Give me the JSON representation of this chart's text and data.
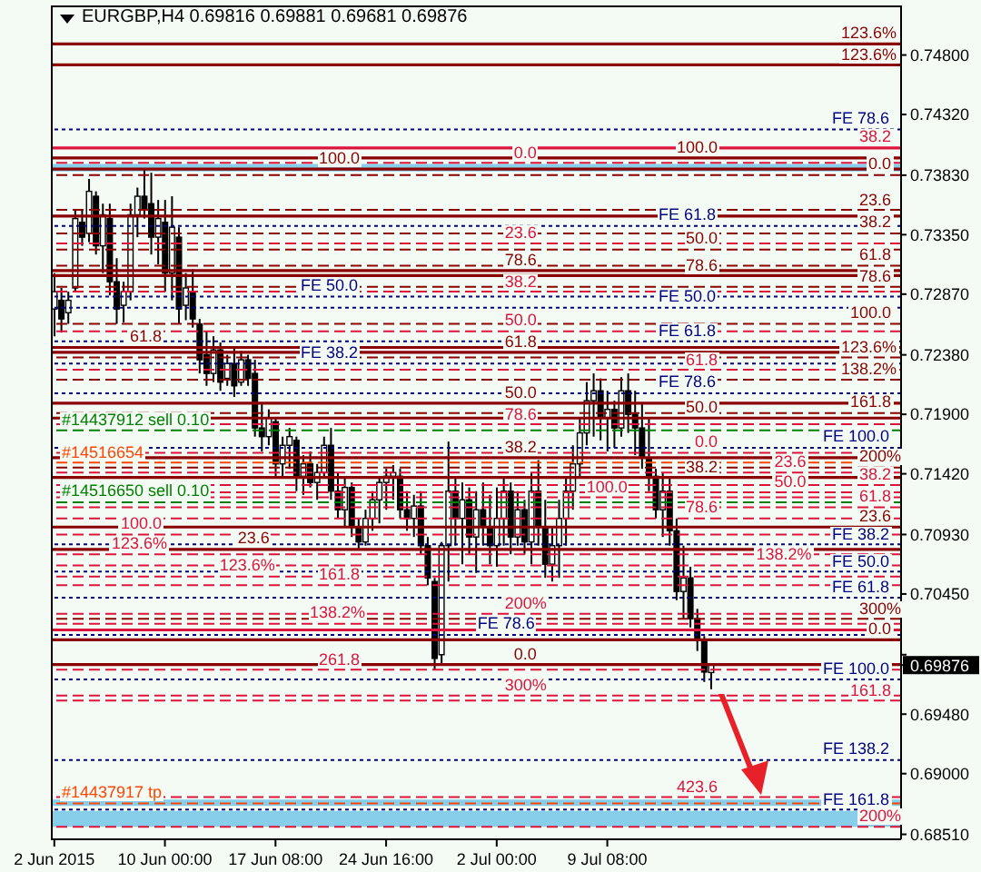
{
  "chart_data": {
    "type": "candlestick",
    "title": "EURGBP,H4 0.69816 0.69881 0.69681 0.69876",
    "color": "#000000",
    "categories": [
      "2 Jun 2015",
      null,
      null,
      null,
      null,
      null,
      null,
      null,
      null,
      null,
      null,
      null,
      null,
      null,
      null,
      null,
      "10 Jun 00:00",
      null,
      null,
      null,
      null,
      null,
      null,
      null,
      null,
      null,
      null,
      null,
      null,
      null,
      null,
      null,
      "17 Jun 08:00",
      null,
      null,
      null,
      null,
      null,
      null,
      null,
      null,
      null,
      null,
      null,
      null,
      null,
      null,
      null,
      "24 Jun 16:00",
      null,
      null,
      null,
      null,
      null,
      null,
      null,
      null,
      null,
      null,
      null,
      null,
      null,
      null,
      null,
      "2 Jul 00:00",
      null,
      null,
      null,
      null,
      null,
      null,
      null,
      null,
      null,
      null,
      null,
      null,
      null,
      null,
      null,
      "9 Jul 08:00",
      null,
      null,
      null,
      null,
      null,
      null,
      null,
      null,
      null,
      null,
      null,
      null,
      null,
      null,
      null,
      null,
      null,
      null,
      null,
      null,
      null,
      null,
      null,
      null,
      null,
      null,
      null,
      null,
      null,
      null,
      null,
      null,
      null,
      null,
      null,
      null,
      null,
      null,
      null,
      null,
      null,
      null
    ],
    "ohlc": [
      [
        0.7275,
        0.7304,
        0.7253,
        0.7289
      ],
      [
        0.7282,
        0.7292,
        0.7256,
        0.7267
      ],
      [
        0.7272,
        0.7289,
        0.7263,
        0.7282
      ],
      [
        0.7292,
        0.7355,
        0.7289,
        0.7348
      ],
      [
        0.7345,
        0.7355,
        0.7326,
        0.7333
      ],
      [
        0.7336,
        0.738,
        0.7329,
        0.737
      ],
      [
        0.7366,
        0.737,
        0.7319,
        0.7326
      ],
      [
        0.7326,
        0.736,
        0.7304,
        0.7351
      ],
      [
        0.7348,
        0.736,
        0.7286,
        0.7297
      ],
      [
        0.7297,
        0.7316,
        0.7263,
        0.7275
      ],
      [
        0.7278,
        0.7297,
        0.7264,
        0.7289
      ],
      [
        0.7289,
        0.736,
        0.7282,
        0.7351
      ],
      [
        0.7351,
        0.7373,
        0.7333,
        0.7366
      ],
      [
        0.7366,
        0.7388,
        0.7348,
        0.7355
      ],
      [
        0.736,
        0.7385,
        0.7319,
        0.7333
      ],
      [
        0.7333,
        0.7363,
        0.7311,
        0.7348
      ],
      [
        0.7345,
        0.7363,
        0.7289,
        0.7304
      ],
      [
        0.7304,
        0.7366,
        0.7282,
        0.7341
      ],
      [
        0.7333,
        0.7341,
        0.7263,
        0.7275
      ],
      [
        0.7278,
        0.7304,
        0.7266,
        0.7292
      ],
      [
        0.7289,
        0.7307,
        0.726,
        0.7267
      ],
      [
        0.7263,
        0.7267,
        0.7223,
        0.7234
      ],
      [
        0.7238,
        0.7257,
        0.7213,
        0.7223
      ],
      [
        0.7223,
        0.7253,
        0.7216,
        0.7242
      ],
      [
        0.7242,
        0.7248,
        0.7209,
        0.7216
      ],
      [
        0.7219,
        0.7238,
        0.7213,
        0.7231
      ],
      [
        0.7231,
        0.7245,
        0.7204,
        0.7213
      ],
      [
        0.7216,
        0.7241,
        0.7213,
        0.7234
      ],
      [
        0.7234,
        0.7238,
        0.7213,
        0.7219
      ],
      [
        0.7223,
        0.7234,
        0.7172,
        0.7179
      ],
      [
        0.7179,
        0.7199,
        0.716,
        0.7172
      ],
      [
        0.7172,
        0.7194,
        0.7165,
        0.7187
      ],
      [
        0.7184,
        0.7187,
        0.714,
        0.715
      ],
      [
        0.715,
        0.7172,
        0.714,
        0.7165
      ],
      [
        0.7165,
        0.7179,
        0.7146,
        0.7172
      ],
      [
        0.7169,
        0.7172,
        0.7128,
        0.714
      ],
      [
        0.714,
        0.7157,
        0.7125,
        0.715
      ],
      [
        0.715,
        0.716,
        0.7131,
        0.7135
      ],
      [
        0.7135,
        0.715,
        0.7121,
        0.7143
      ],
      [
        0.7143,
        0.7172,
        0.714,
        0.7165
      ],
      [
        0.7165,
        0.7179,
        0.7121,
        0.7128
      ],
      [
        0.7128,
        0.7143,
        0.7106,
        0.7113
      ],
      [
        0.7113,
        0.714,
        0.7099,
        0.7131
      ],
      [
        0.7131,
        0.7135,
        0.7091,
        0.7099
      ],
      [
        0.7099,
        0.7106,
        0.7081,
        0.7087
      ],
      [
        0.7087,
        0.7113,
        0.7084,
        0.7106
      ],
      [
        0.7106,
        0.7128,
        0.7096,
        0.7121
      ],
      [
        0.7121,
        0.714,
        0.7102,
        0.7135
      ],
      [
        0.7135,
        0.7146,
        0.7113,
        0.714
      ],
      [
        0.714,
        0.7149,
        0.7121,
        0.7143
      ],
      [
        0.714,
        0.7146,
        0.7106,
        0.7113
      ],
      [
        0.7113,
        0.7128,
        0.7096,
        0.7106
      ],
      [
        0.7106,
        0.7125,
        0.7091,
        0.7116
      ],
      [
        0.7116,
        0.7128,
        0.7077,
        0.7084
      ],
      [
        0.7084,
        0.7091,
        0.7052,
        0.7058
      ],
      [
        0.7055,
        0.7058,
        0.6984,
        0.6993
      ],
      [
        0.6996,
        0.7087,
        0.6989,
        0.7084
      ],
      [
        0.7084,
        0.7168,
        0.7055,
        0.7128
      ],
      [
        0.7128,
        0.714,
        0.7084,
        0.7106
      ],
      [
        0.7106,
        0.7135,
        0.7069,
        0.7121
      ],
      [
        0.7121,
        0.7131,
        0.7077,
        0.7091
      ],
      [
        0.7091,
        0.7128,
        0.7062,
        0.7113
      ],
      [
        0.7113,
        0.7135,
        0.7084,
        0.7099
      ],
      [
        0.7099,
        0.7125,
        0.7069,
        0.7084
      ],
      [
        0.7084,
        0.7131,
        0.7067,
        0.7106
      ],
      [
        0.7106,
        0.714,
        0.7084,
        0.7128
      ],
      [
        0.7128,
        0.7135,
        0.7077,
        0.7091
      ],
      [
        0.7091,
        0.7128,
        0.7084,
        0.7113
      ],
      [
        0.7113,
        0.7121,
        0.7077,
        0.7087
      ],
      [
        0.7087,
        0.7143,
        0.7069,
        0.7128
      ],
      [
        0.7128,
        0.7153,
        0.7084,
        0.7099
      ],
      [
        0.7099,
        0.7121,
        0.7058,
        0.7069
      ],
      [
        0.7069,
        0.7099,
        0.7055,
        0.7084
      ],
      [
        0.7084,
        0.7121,
        0.7058,
        0.7106
      ],
      [
        0.7106,
        0.714,
        0.7084,
        0.7128
      ],
      [
        0.7128,
        0.7165,
        0.7113,
        0.715
      ],
      [
        0.715,
        0.7187,
        0.714,
        0.7175
      ],
      [
        0.7175,
        0.7216,
        0.7165,
        0.7201
      ],
      [
        0.7201,
        0.7223,
        0.7172,
        0.7209
      ],
      [
        0.7209,
        0.7219,
        0.7169,
        0.7187
      ],
      [
        0.7187,
        0.7209,
        0.716,
        0.7194
      ],
      [
        0.7194,
        0.7201,
        0.7163,
        0.7179
      ],
      [
        0.7179,
        0.722,
        0.7172,
        0.7209
      ],
      [
        0.7209,
        0.7223,
        0.7175,
        0.719
      ],
      [
        0.719,
        0.7209,
        0.7157,
        0.7179
      ],
      [
        0.7179,
        0.7199,
        0.7146,
        0.7155
      ],
      [
        0.7155,
        0.7187,
        0.7128,
        0.714
      ],
      [
        0.714,
        0.7146,
        0.7106,
        0.7113
      ],
      [
        0.7113,
        0.7143,
        0.7091,
        0.7128
      ],
      [
        0.7128,
        0.714,
        0.7084,
        0.7096
      ],
      [
        0.7096,
        0.7106,
        0.704,
        0.7047
      ],
      [
        0.7047,
        0.7084,
        0.7025,
        0.7058
      ],
      [
        0.7058,
        0.7067,
        0.7018,
        0.7025
      ],
      [
        0.7025,
        0.7033,
        0.6999,
        0.7008
      ],
      [
        0.7008,
        0.7011,
        0.6974,
        0.6982
      ],
      [
        0.69816,
        0.69881,
        0.69681,
        0.69876
      ],
      null,
      null,
      null,
      null,
      null,
      null,
      null,
      null,
      null,
      null,
      null,
      null,
      null,
      null,
      null,
      null,
      null,
      null,
      null,
      null,
      null,
      null,
      null,
      null,
      null,
      null,
      null
    ],
    "ylim": [
      0.6847,
      0.752
    ],
    "yticks": [
      {
        "value": 0.748,
        "label": "0.74800"
      },
      {
        "value": 0.7432,
        "label": "0.74320"
      },
      {
        "value": 0.7383,
        "label": "0.73830"
      },
      {
        "value": 0.7335,
        "label": "0.73350"
      },
      {
        "value": 0.7287,
        "label": "0.72870"
      },
      {
        "value": 0.7238,
        "label": "0.72380"
      },
      {
        "value": 0.719,
        "label": "0.71900"
      },
      {
        "value": 0.7142,
        "label": "0.71420"
      },
      {
        "value": 0.7093,
        "label": "0.70930"
      },
      {
        "value": 0.7045,
        "label": "0.70450"
      },
      {
        "value": 0.6996,
        "label": null
      },
      {
        "value": 0.69876,
        "label": "0.69876"
      },
      {
        "value": 0.6948,
        "label": "0.69480"
      },
      {
        "value": 0.69,
        "label": "0.69000"
      },
      {
        "value": 0.6851,
        "label": "0.68510"
      }
    ],
    "bands": [
      {
        "axis": "y",
        "from": 0.7386,
        "to": 0.7392,
        "color": "#87ceeb"
      },
      {
        "axis": "y",
        "from": 0.6874,
        "to": 0.6879,
        "color": "#87ceeb"
      },
      {
        "axis": "y",
        "from": 0.6857,
        "to": 0.687,
        "color": "#87ceeb"
      }
    ],
    "ref_lines": [
      {
        "axis": "y",
        "value": 0.7405,
        "color": "#dc143c",
        "line_style": "solid"
      },
      {
        "axis": "y",
        "value": 0.7383,
        "color": "#8b0000",
        "line_style": "dashed"
      },
      {
        "axis": "y",
        "value": 0.7355,
        "color": "#8b0000",
        "line_style": "dashed"
      },
      {
        "axis": "y",
        "value": 0.7336,
        "color": "#8b0000",
        "line_style": "dashed"
      },
      {
        "axis": "y",
        "value": 0.7323,
        "color": "#8b0000",
        "line_style": "dashed"
      },
      {
        "axis": "y",
        "value": 0.731,
        "color": "#8b0000",
        "line_style": "dashed"
      },
      {
        "axis": "y",
        "value": 0.7293,
        "color": "#8b0000",
        "line_style": "dashed"
      },
      {
        "axis": "y",
        "value": 0.7263,
        "color": "#8b0000",
        "line_style": "dashed"
      },
      {
        "axis": "y",
        "value": 0.7236,
        "color": "#8b0000",
        "line_style": "dashed"
      },
      {
        "axis": "y",
        "value": 0.7218,
        "color": "#8b0000",
        "line_style": "dashed"
      },
      {
        "axis": "y",
        "value": 0.7191,
        "color": "#8b0000",
        "line_style": "dashed"
      },
      {
        "axis": "y",
        "value": 0.7147,
        "color": "#8b0000",
        "line_style": "dashed"
      },
      {
        "axis": "y",
        "value": 0.7025,
        "color": "#8b0000",
        "line_style": "dashed"
      },
      {
        "axis": "y",
        "value": 0.7276,
        "color": "#000080",
        "line_style": "dotted"
      },
      {
        "axis": "y",
        "value": 0.7249,
        "color": "#000080",
        "line_style": "dotted"
      },
      {
        "axis": "y",
        "value": 0.7207,
        "color": "#000080",
        "line_style": "dotted"
      },
      {
        "axis": "y",
        "value": 0.7163,
        "color": "#000080",
        "line_style": "dotted"
      },
      {
        "axis": "y",
        "value": 0.7085,
        "color": "#000080",
        "line_style": "dotted"
      },
      {
        "axis": "y",
        "value": 0.7063,
        "color": "#000080",
        "line_style": "dotted"
      },
      {
        "axis": "y",
        "value": 0.7042,
        "color": "#000080",
        "line_style": "dotted"
      },
      {
        "axis": "y",
        "value": 0.7012,
        "color": "#000080",
        "line_style": "dotted"
      },
      {
        "axis": "y",
        "value": 0.6976,
        "color": "#000080",
        "line_style": "dotted"
      },
      {
        "axis": "y",
        "value": 0.6911,
        "color": "#000080",
        "line_style": "dotted"
      },
      {
        "axis": "y",
        "value": 0.6871,
        "color": "#000080",
        "line_style": "dotted"
      },
      {
        "axis": "y",
        "value": 0.7489,
        "color": "#8b0000",
        "line_style": "solid"
      },
      {
        "axis": "y",
        "value": 0.7397,
        "color": "#8b0000",
        "line_style": "solid"
      },
      {
        "axis": "y",
        "value": 0.7302,
        "color": "#8b0000",
        "line_style": "solid"
      },
      {
        "axis": "y",
        "value": 0.724,
        "color": "#8b0000",
        "line_style": "solid"
      },
      {
        "axis": "y",
        "value": 0.7187,
        "color": "#8b0000",
        "line_style": "solid"
      },
      {
        "axis": "y",
        "value": 0.7139,
        "color": "#8b0000",
        "line_style": "solid"
      },
      {
        "axis": "y",
        "value": 0.7081,
        "color": "#8b0000",
        "line_style": "solid"
      },
      {
        "axis": "y",
        "value": 0.6988,
        "color": "#8b0000",
        "line_style": "solid"
      },
      {
        "axis": "y",
        "value": 0.7159,
        "color": "#dc143c",
        "line_style": "dashed"
      },
      {
        "axis": "y",
        "value": 0.7143,
        "color": "#dc143c",
        "line_style": "dashed"
      },
      {
        "axis": "y",
        "value": 0.7133,
        "color": "#dc143c",
        "line_style": "dashed"
      },
      {
        "axis": "y",
        "value": 0.7127,
        "color": "#dc143c",
        "line_style": "dashed"
      },
      {
        "axis": "y",
        "value": 0.7115,
        "color": "#dc143c",
        "line_style": "dashed"
      },
      {
        "axis": "y",
        "value": 0.7106,
        "color": "#dc143c",
        "line_style": "dashed"
      },
      {
        "axis": "y",
        "value": 0.7093,
        "color": "#dc143c",
        "line_style": "dashed"
      },
      {
        "axis": "y",
        "value": 0.7077,
        "color": "#dc143c",
        "line_style": "dashed"
      },
      {
        "axis": "y",
        "value": 0.7068,
        "color": "#dc143c",
        "line_style": "dashed"
      },
      {
        "axis": "y",
        "value": 0.7052,
        "color": "#dc143c",
        "line_style": "dashed"
      },
      {
        "axis": "y",
        "value": 0.7029,
        "color": "#dc143c",
        "line_style": "dashed"
      },
      {
        "axis": "y",
        "value": 0.6984,
        "color": "#dc143c",
        "line_style": "dashed"
      },
      {
        "axis": "y",
        "value": 0.6963,
        "color": "#dc143c",
        "line_style": "dashed"
      },
      {
        "axis": "y",
        "value": 0.6881,
        "color": "#dc143c",
        "line_style": "dashed"
      },
      {
        "axis": "y",
        "value": 0.7393,
        "color": "#dc143c",
        "line_style": "dashed"
      },
      {
        "axis": "y",
        "value": 0.7328,
        "color": "#dc143c",
        "line_style": "dashed"
      },
      {
        "axis": "y",
        "value": 0.7289,
        "color": "#dc143c",
        "line_style": "dashed"
      },
      {
        "axis": "y",
        "value": 0.7257,
        "color": "#dc143c",
        "line_style": "dashed"
      },
      {
        "axis": "y",
        "value": 0.7226,
        "color": "#dc143c",
        "line_style": "dashed"
      },
      {
        "axis": "y",
        "value": 0.7182,
        "color": "#dc143c",
        "line_style": "dashed"
      },
      {
        "axis": "y",
        "value": 0.7123,
        "color": "#dc143c",
        "line_style": "dashed"
      },
      {
        "axis": "y",
        "value": 0.7059,
        "color": "#dc143c",
        "line_style": "dashed"
      },
      {
        "axis": "y",
        "value": 0.7021,
        "color": "#dc143c",
        "line_style": "dashed"
      },
      {
        "axis": "y",
        "value": 0.6959,
        "color": "#dc143c",
        "line_style": "dashed"
      },
      {
        "axis": "y",
        "value": 0.6857,
        "color": "#dc143c",
        "line_style": "dashed"
      },
      {
        "axis": "y",
        "value": 0.742,
        "color": "#000080",
        "line_style": "dotted"
      },
      {
        "axis": "y",
        "value": 0.7342,
        "color": "#000080",
        "line_style": "dotted"
      },
      {
        "axis": "y",
        "value": 0.7285,
        "color": "#000080",
        "line_style": "dotted"
      },
      {
        "axis": "y",
        "value": 0.7231,
        "color": "#000080",
        "line_style": "dotted"
      },
      {
        "axis": "y",
        "value": 0.7472,
        "color": "#8b0000",
        "line_style": "solid"
      },
      {
        "axis": "y",
        "value": 0.7388,
        "color": "#8b0000",
        "line_style": "solid"
      },
      {
        "axis": "y",
        "value": 0.7306,
        "color": "#8b0000",
        "line_style": "solid"
      },
      {
        "axis": "y",
        "value": 0.7244,
        "color": "#8b0000",
        "line_style": "solid"
      },
      {
        "axis": "y",
        "value": 0.7199,
        "color": "#8b0000",
        "line_style": "solid"
      },
      {
        "axis": "y",
        "value": 0.7155,
        "color": "#8b0000",
        "line_style": "solid"
      },
      {
        "axis": "y",
        "value": 0.7099,
        "color": "#8b0000",
        "line_style": "solid"
      },
      {
        "axis": "y",
        "value": 0.7008,
        "color": "#8b0000",
        "line_style": "solid"
      },
      {
        "axis": "y",
        "value": 0.7177,
        "color": "#008000",
        "line_style": "dashed"
      },
      {
        "axis": "y",
        "value": 0.7151,
        "color": "#ff4500",
        "line_style": "dashed"
      },
      {
        "axis": "y",
        "value": 0.7119,
        "color": "#008000",
        "line_style": "dashed"
      },
      {
        "axis": "y",
        "value": 0.6876,
        "color": "#ff4500",
        "line_style": "dashed"
      },
      {
        "axis": "y",
        "value": 0.735,
        "color": "#8b0000",
        "line_style": "solid"
      },
      {
        "axis": "y",
        "value": 0.7016,
        "color": "#dc143c",
        "line_style": "solid"
      }
    ],
    "annotations": [
      {
        "text": "#14437912 sell 0.10",
        "y": 0.7177
      },
      {
        "text": "#14516654",
        "y": 0.7151
      },
      {
        "text": "#14516650 sell 0.10",
        "y": 0.7119
      },
      {
        "text": "#14437917 tp",
        "y": 0.6876
      },
      {
        "text": "38.2",
        "y": 0.7405
      },
      {
        "text": "0.0",
        "y": 0.7383
      },
      {
        "text": "23.6",
        "y": 0.7355
      },
      {
        "text": "38.2",
        "y": 0.7336
      },
      {
        "text": "50.0",
        "y": 0.7323
      },
      {
        "text": "61.8",
        "y": 0.731
      },
      {
        "text": "78.6",
        "y": 0.7293
      },
      {
        "text": "100.0",
        "y": 0.7263
      },
      {
        "text": "123.6%",
        "y": 0.7236
      },
      {
        "text": "138.2%",
        "y": 0.7218
      },
      {
        "text": "161.8",
        "y": 0.7191
      },
      {
        "text": "200%",
        "y": 0.7147
      },
      {
        "text": "300%",
        "y": 0.7025
      },
      {
        "text": "FE 50.0",
        "y": 0.7276
      },
      {
        "text": "FE 61.8",
        "y": 0.7249
      },
      {
        "text": "FE 78.6",
        "y": 0.7207
      },
      {
        "text": "FE 100.0",
        "y": 0.7163
      },
      {
        "text": "FE 38.2",
        "y": 0.7085
      },
      {
        "text": "FE 50.0",
        "y": 0.7063
      },
      {
        "text": "FE 61.8",
        "y": 0.7042
      },
      {
        "text": "FE 78.6",
        "y": 0.7012
      },
      {
        "text": "FE 100.0",
        "y": 0.6976
      },
      {
        "text": "FE 138.2",
        "y": 0.6911
      },
      {
        "text": "FE 161.8",
        "y": 0.6871
      },
      {
        "text": "123.6%",
        "y": 0.7489
      },
      {
        "text": "100.0",
        "y": 0.7397
      },
      {
        "text": "78.6",
        "y": 0.7302
      },
      {
        "text": "61.8",
        "y": 0.724
      },
      {
        "text": "50.0",
        "y": 0.7187
      },
      {
        "text": "38.2",
        "y": 0.7139
      },
      {
        "text": "23.6",
        "y": 0.7081
      },
      {
        "text": "0.0",
        "y": 0.6988
      },
      {
        "text": "0.0",
        "y": 0.7159
      },
      {
        "text": "23.6",
        "y": 0.7143
      },
      {
        "text": "38.2",
        "y": 0.7133
      },
      {
        "text": "50.0",
        "y": 0.7127
      },
      {
        "text": "61.8",
        "y": 0.7115
      },
      {
        "text": "78.6",
        "y": 0.7106
      },
      {
        "text": "100.0",
        "y": 0.7093
      },
      {
        "text": "123.6%",
        "y": 0.7077
      },
      {
        "text": "138.2%",
        "y": 0.7068
      },
      {
        "text": "161.8",
        "y": 0.7052
      },
      {
        "text": "200%",
        "y": 0.7029
      },
      {
        "text": "261.8",
        "y": 0.6984
      },
      {
        "text": "300%",
        "y": 0.6963
      },
      {
        "text": "423.6",
        "y": 0.6881
      },
      {
        "text": "0.0",
        "y": 0.7393
      },
      {
        "text": "23.6",
        "y": 0.7328
      },
      {
        "text": "38.2",
        "y": 0.7289
      },
      {
        "text": "50.0",
        "y": 0.7257
      },
      {
        "text": "61.8",
        "y": 0.7226
      },
      {
        "text": "78.6",
        "y": 0.7182
      },
      {
        "text": "100.0",
        "y": 0.7123
      },
      {
        "text": "123.6%",
        "y": 0.7059
      },
      {
        "text": "138.2%",
        "y": 0.7021
      },
      {
        "text": "161.8",
        "y": 0.6959
      },
      {
        "text": "200%",
        "y": 0.6857
      },
      {
        "text": "FE 78.6",
        "y": 0.742
      },
      {
        "text": "FE 61.8",
        "y": 0.7342
      },
      {
        "text": "FE 50.0",
        "y": 0.7285
      },
      {
        "text": "FE 38.2",
        "y": 0.7231
      },
      {
        "text": "123.6%",
        "y": 0.7472
      },
      {
        "text": "100.0",
        "y": 0.7388
      },
      {
        "text": "78.6",
        "y": 0.7306
      },
      {
        "text": "61.8",
        "y": 0.7244
      },
      {
        "text": "50.0",
        "y": 0.7199
      },
      {
        "text": "38.2",
        "y": 0.7155
      },
      {
        "text": "23.6",
        "y": 0.7099
      },
      {
        "text": "0.0",
        "y": 0.7008
      }
    ]
  }
}
